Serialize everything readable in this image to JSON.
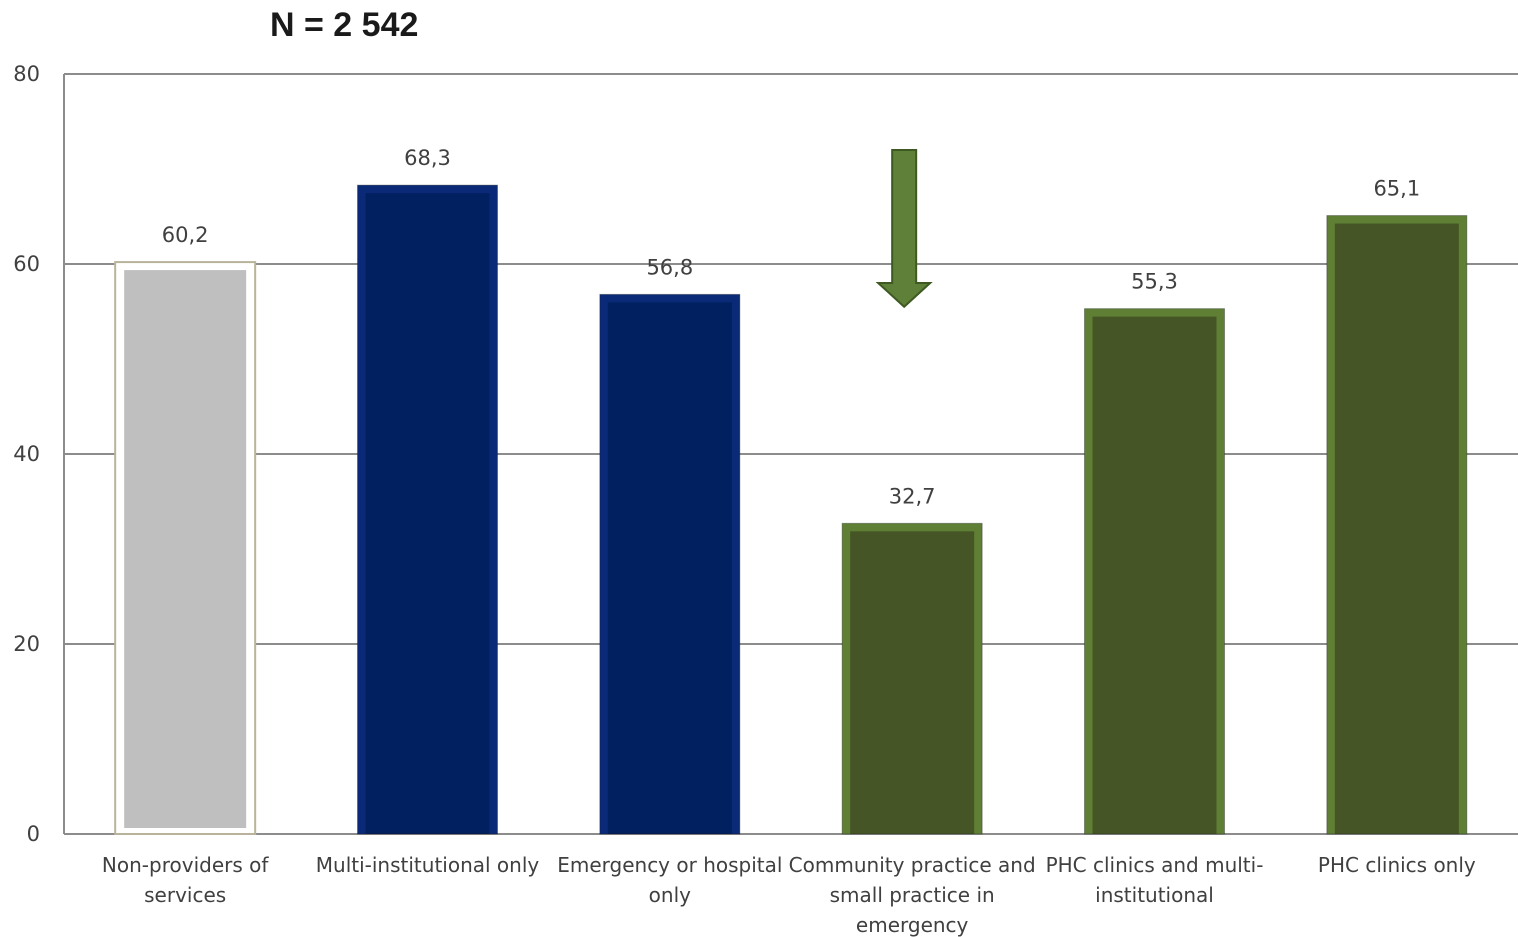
{
  "chart_data": {
    "type": "bar",
    "title": "N = 2 542",
    "xlabel": "",
    "ylabel": "",
    "ylim": [
      0,
      80
    ],
    "yticks": [
      "0",
      "20",
      "40",
      "60",
      "80"
    ],
    "grid": true,
    "categories": [
      [
        "Non-providers of",
        "services"
      ],
      [
        "Multi-institutional only"
      ],
      [
        "Emergency or hospital",
        "only"
      ],
      [
        "Community practice and",
        "small practice in",
        "emergency"
      ],
      [
        "PHC clinics and multi-",
        "institutional"
      ],
      [
        "PHC clinics only"
      ]
    ],
    "values": [
      60.2,
      68.3,
      56.8,
      32.7,
      55.3,
      65.1
    ],
    "value_labels": [
      "60,2",
      "68,3",
      "56,8",
      "32,7",
      "55,3",
      "65,1"
    ],
    "bar_colors": [
      "#bfbfbf",
      "#002060",
      "#002060",
      "#455526",
      "#455526",
      "#455526"
    ],
    "bar_edge_colors": [
      "#ffffff",
      "#0a2a78",
      "#0a2a78",
      "#5f7f35",
      "#5f7f35",
      "#5f7f35"
    ],
    "annotation": {
      "type": "down-arrow",
      "category_index": 3,
      "color": "#5e8038"
    }
  }
}
